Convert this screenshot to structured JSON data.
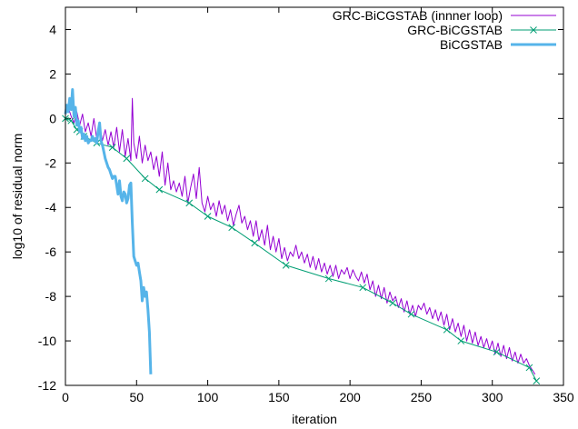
{
  "chart_data": {
    "type": "line",
    "xlabel": "iteration",
    "ylabel": "log10 of residual norm",
    "xlim": [
      0,
      350
    ],
    "ylim": [
      -12,
      5
    ],
    "xticks": [
      0,
      50,
      100,
      150,
      200,
      250,
      300,
      350
    ],
    "yticks": [
      -12,
      -10,
      -8,
      -6,
      -4,
      -2,
      0,
      2,
      4
    ],
    "xtick_labels": [
      "0",
      "50",
      "100",
      "150",
      "200",
      "250",
      "300",
      "350"
    ],
    "ytick_labels": [
      "-12",
      "-10",
      "-8",
      "-6",
      "-4",
      "-2",
      "0",
      "2",
      "4"
    ],
    "grid": false,
    "legend_position": "top-right",
    "series": [
      {
        "name": "GRC-BiCGSTAB (innner loop)",
        "color": "#9400d3",
        "style": "thin-line",
        "points": [
          [
            0,
            0.3
          ],
          [
            2,
            0.5
          ],
          [
            4,
            0.1
          ],
          [
            6,
            -0.2
          ],
          [
            8,
            0.3
          ],
          [
            10,
            -0.3
          ],
          [
            12,
            0.2
          ],
          [
            14,
            -0.6
          ],
          [
            16,
            -0.2
          ],
          [
            18,
            -0.8
          ],
          [
            20,
            0.0
          ],
          [
            22,
            -0.9
          ],
          [
            24,
            -0.3
          ],
          [
            26,
            -1.0
          ],
          [
            28,
            -0.5
          ],
          [
            30,
            -1.2
          ],
          [
            32,
            -0.6
          ],
          [
            34,
            -1.3
          ],
          [
            36,
            -0.4
          ],
          [
            38,
            -1.5
          ],
          [
            40,
            -0.5
          ],
          [
            42,
            -1.7
          ],
          [
            44,
            -0.9
          ],
          [
            46,
            -1.9
          ],
          [
            47,
            0.9
          ],
          [
            48,
            -1.1
          ],
          [
            50,
            -1.8
          ],
          [
            52,
            -0.8
          ],
          [
            54,
            -2.0
          ],
          [
            56,
            -1.2
          ],
          [
            58,
            -1.9
          ],
          [
            60,
            -1.5
          ],
          [
            62,
            -2.3
          ],
          [
            64,
            -1.7
          ],
          [
            66,
            -2.6
          ],
          [
            68,
            -1.5
          ],
          [
            70,
            -3.0
          ],
          [
            72,
            -2.0
          ],
          [
            74,
            -3.2
          ],
          [
            76,
            -2.8
          ],
          [
            78,
            -3.3
          ],
          [
            80,
            -2.9
          ],
          [
            82,
            -3.5
          ],
          [
            84,
            -2.6
          ],
          [
            86,
            -3.8
          ],
          [
            88,
            -3.1
          ],
          [
            90,
            -2.5
          ],
          [
            92,
            -3.6
          ],
          [
            94,
            -2.2
          ],
          [
            96,
            -3.8
          ],
          [
            98,
            -4.2
          ],
          [
            100,
            -3.5
          ],
          [
            102,
            -4.1
          ],
          [
            104,
            -3.8
          ],
          [
            106,
            -4.4
          ],
          [
            108,
            -3.7
          ],
          [
            110,
            -4.3
          ],
          [
            112,
            -3.9
          ],
          [
            114,
            -4.6
          ],
          [
            116,
            -4.1
          ],
          [
            118,
            -4.8
          ],
          [
            120,
            -4.3
          ],
          [
            122,
            -3.9
          ],
          [
            124,
            -4.7
          ],
          [
            126,
            -4.4
          ],
          [
            128,
            -5.0
          ],
          [
            130,
            -4.6
          ],
          [
            132,
            -5.3
          ],
          [
            134,
            -4.6
          ],
          [
            136,
            -5.5
          ],
          [
            138,
            -5.0
          ],
          [
            140,
            -5.7
          ],
          [
            142,
            -4.8
          ],
          [
            144,
            -5.9
          ],
          [
            146,
            -5.3
          ],
          [
            148,
            -6.0
          ],
          [
            150,
            -5.4
          ],
          [
            152,
            -6.3
          ],
          [
            154,
            -5.8
          ],
          [
            156,
            -6.4
          ],
          [
            158,
            -6.0
          ],
          [
            160,
            -6.2
          ],
          [
            162,
            -5.7
          ],
          [
            164,
            -6.3
          ],
          [
            166,
            -6.0
          ],
          [
            168,
            -6.5
          ],
          [
            170,
            -6.1
          ],
          [
            172,
            -6.7
          ],
          [
            174,
            -6.2
          ],
          [
            176,
            -6.8
          ],
          [
            178,
            -6.3
          ],
          [
            180,
            -6.9
          ],
          [
            182,
            -6.5
          ],
          [
            184,
            -7.0
          ],
          [
            186,
            -6.6
          ],
          [
            188,
            -7.1
          ],
          [
            190,
            -6.6
          ],
          [
            192,
            -7.2
          ],
          [
            194,
            -6.8
          ],
          [
            196,
            -7.0
          ],
          [
            198,
            -6.7
          ],
          [
            200,
            -7.2
          ],
          [
            202,
            -6.8
          ],
          [
            204,
            -7.1
          ],
          [
            206,
            -7.3
          ],
          [
            208,
            -6.9
          ],
          [
            210,
            -7.4
          ],
          [
            212,
            -7.0
          ],
          [
            214,
            -7.7
          ],
          [
            216,
            -7.3
          ],
          [
            218,
            -8.0
          ],
          [
            220,
            -7.5
          ],
          [
            222,
            -8.1
          ],
          [
            224,
            -7.6
          ],
          [
            226,
            -8.3
          ],
          [
            228,
            -7.8
          ],
          [
            230,
            -8.2
          ],
          [
            232,
            -8.0
          ],
          [
            234,
            -8.5
          ],
          [
            236,
            -8.1
          ],
          [
            238,
            -8.7
          ],
          [
            240,
            -8.2
          ],
          [
            242,
            -8.8
          ],
          [
            244,
            -8.4
          ],
          [
            246,
            -8.9
          ],
          [
            248,
            -8.4
          ],
          [
            250,
            -8.6
          ],
          [
            252,
            -8.3
          ],
          [
            254,
            -8.8
          ],
          [
            256,
            -8.5
          ],
          [
            258,
            -9.0
          ],
          [
            260,
            -8.6
          ],
          [
            262,
            -9.1
          ],
          [
            264,
            -8.7
          ],
          [
            266,
            -9.3
          ],
          [
            268,
            -8.8
          ],
          [
            270,
            -9.5
          ],
          [
            272,
            -9.0
          ],
          [
            274,
            -9.6
          ],
          [
            276,
            -9.2
          ],
          [
            278,
            -9.8
          ],
          [
            280,
            -9.3
          ],
          [
            282,
            -10.0
          ],
          [
            284,
            -9.5
          ],
          [
            286,
            -10.1
          ],
          [
            288,
            -9.6
          ],
          [
            290,
            -10.2
          ],
          [
            292,
            -9.8
          ],
          [
            294,
            -10.3
          ],
          [
            296,
            -9.9
          ],
          [
            298,
            -10.4
          ],
          [
            300,
            -10.0
          ],
          [
            302,
            -10.6
          ],
          [
            304,
            -10.1
          ],
          [
            306,
            -10.7
          ],
          [
            308,
            -10.2
          ],
          [
            310,
            -10.8
          ],
          [
            312,
            -10.3
          ],
          [
            314,
            -10.9
          ],
          [
            316,
            -10.5
          ],
          [
            318,
            -11.0
          ],
          [
            320,
            -10.6
          ],
          [
            322,
            -11.0
          ],
          [
            324,
            -10.8
          ],
          [
            326,
            -11.1
          ],
          [
            328,
            -11.3
          ],
          [
            330,
            -11.5
          ]
        ]
      },
      {
        "name": "GRC-BiCGSTAB",
        "color": "#009e73",
        "style": "line-with-x-markers",
        "points": [
          [
            0,
            0.0
          ],
          [
            4,
            -0.1
          ],
          [
            8,
            -0.5
          ],
          [
            10,
            -0.6
          ],
          [
            13,
            -0.8
          ],
          [
            22,
            -1.1
          ],
          [
            33,
            -1.3
          ],
          [
            43,
            -1.8
          ],
          [
            56,
            -2.7
          ],
          [
            66,
            -3.2
          ],
          [
            87,
            -3.8
          ],
          [
            100,
            -4.4
          ],
          [
            117,
            -4.9
          ],
          [
            133,
            -5.6
          ],
          [
            155,
            -6.6
          ],
          [
            185,
            -7.2
          ],
          [
            209,
            -7.6
          ],
          [
            230,
            -8.3
          ],
          [
            243,
            -8.8
          ],
          [
            268,
            -9.5
          ],
          [
            278,
            -10.0
          ],
          [
            303,
            -10.5
          ],
          [
            326,
            -11.2
          ],
          [
            331,
            -11.8
          ]
        ]
      },
      {
        "name": "BiCGSTAB",
        "color": "#56b4e9",
        "style": "thick-line",
        "points": [
          [
            0,
            0.2
          ],
          [
            1,
            0.6
          ],
          [
            2,
            0.3
          ],
          [
            3,
            0.9
          ],
          [
            4,
            0.4
          ],
          [
            5,
            1.3
          ],
          [
            6,
            0.1
          ],
          [
            7,
            0.5
          ],
          [
            8,
            -0.3
          ],
          [
            9,
            -0.1
          ],
          [
            10,
            -0.6
          ],
          [
            11,
            -0.4
          ],
          [
            12,
            -0.9
          ],
          [
            13,
            -0.7
          ],
          [
            14,
            -1.0
          ],
          [
            15,
            -0.8
          ],
          [
            16,
            -1.1
          ],
          [
            17,
            -1.0
          ],
          [
            18,
            -1.0
          ],
          [
            19,
            -0.8
          ],
          [
            20,
            -1.0
          ],
          [
            21,
            -0.9
          ],
          [
            22,
            -1.1
          ],
          [
            23,
            -0.6
          ],
          [
            24,
            -0.2
          ],
          [
            25,
            -1.0
          ],
          [
            26,
            -1.2
          ],
          [
            27,
            -1.5
          ],
          [
            28,
            -1.8
          ],
          [
            29,
            -2.0
          ],
          [
            30,
            -2.2
          ],
          [
            31,
            -2.3
          ],
          [
            32,
            -2.5
          ],
          [
            33,
            -2.7
          ],
          [
            34,
            -2.6
          ],
          [
            35,
            -2.6
          ],
          [
            36,
            -3.0
          ],
          [
            37,
            -3.4
          ],
          [
            38,
            -2.8
          ],
          [
            39,
            -3.5
          ],
          [
            40,
            -3.7
          ],
          [
            41,
            -3.3
          ],
          [
            42,
            -3.4
          ],
          [
            43,
            -3.8
          ],
          [
            44,
            -3.6
          ],
          [
            45,
            -3.0
          ],
          [
            46,
            -2.9
          ],
          [
            47,
            -4.7
          ],
          [
            48,
            -6.2
          ],
          [
            49,
            -6.4
          ],
          [
            50,
            -6.6
          ],
          [
            51,
            -6.5
          ],
          [
            52,
            -6.9
          ],
          [
            53,
            -7.3
          ],
          [
            54,
            -8.2
          ],
          [
            55,
            -7.6
          ],
          [
            56,
            -8.0
          ],
          [
            57,
            -7.8
          ],
          [
            58,
            -8.6
          ],
          [
            59,
            -9.6
          ],
          [
            60,
            -11.5
          ]
        ]
      }
    ]
  }
}
